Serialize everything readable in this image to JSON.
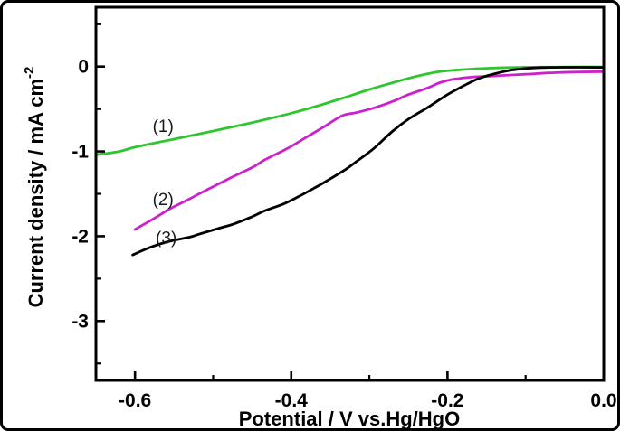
{
  "figure": {
    "background": "#ffffff",
    "border_color": "#000000",
    "axis_color": "#000000"
  },
  "chart_data": {
    "type": "line",
    "title": "",
    "xlabel": "Potential / V vs.Hg/HgO",
    "ylabel": "Current density / mA cm^-2",
    "ylabel_main": "Current density / mA cm",
    "ylabel_superscript": "-2",
    "xlim": [
      -0.65,
      0.0
    ],
    "ylim": [
      -3.7,
      0.7
    ],
    "grid": false,
    "legend_position": "inline-curve-labels",
    "x_major_ticks": [
      -0.6,
      -0.4,
      -0.2,
      0.0
    ],
    "x_major_tick_labels": [
      "-0.6",
      "-0.4",
      "-0.2",
      "0.0"
    ],
    "x_minor_ticks": [
      -0.5,
      -0.3,
      -0.1
    ],
    "y_major_ticks": [
      0,
      -1,
      -2,
      -3
    ],
    "y_major_tick_labels": [
      "0",
      "-1",
      "-2",
      "-3"
    ],
    "y_minor_ticks": [
      0.5,
      -0.5,
      -1.5,
      -2.5,
      -3.5
    ],
    "series": [
      {
        "name": "(1)",
        "color": "#2fc52f",
        "points": [
          [
            -0.65,
            -1.04
          ],
          [
            -0.62,
            -1.0
          ],
          [
            -0.6,
            -0.95
          ],
          [
            -0.55,
            -0.855
          ],
          [
            -0.5,
            -0.76
          ],
          [
            -0.45,
            -0.66
          ],
          [
            -0.4,
            -0.55
          ],
          [
            -0.365,
            -0.46
          ],
          [
            -0.33,
            -0.36
          ],
          [
            -0.3,
            -0.27
          ],
          [
            -0.27,
            -0.19
          ],
          [
            -0.24,
            -0.115
          ],
          [
            -0.21,
            -0.06
          ],
          [
            -0.18,
            -0.035
          ],
          [
            -0.15,
            -0.02
          ],
          [
            -0.12,
            -0.012
          ],
          [
            -0.08,
            -0.006
          ],
          [
            -0.04,
            -0.004
          ],
          [
            0.0,
            -0.004
          ]
        ]
      },
      {
        "name": "(2)",
        "color": "#cc22cc",
        "points": [
          [
            -0.6,
            -1.92
          ],
          [
            -0.57,
            -1.76
          ],
          [
            -0.556,
            -1.68
          ],
          [
            -0.53,
            -1.56
          ],
          [
            -0.516,
            -1.49
          ],
          [
            -0.49,
            -1.37
          ],
          [
            -0.475,
            -1.3
          ],
          [
            -0.45,
            -1.19
          ],
          [
            -0.434,
            -1.1
          ],
          [
            -0.41,
            -0.99
          ],
          [
            -0.4,
            -0.94
          ],
          [
            -0.38,
            -0.83
          ],
          [
            -0.36,
            -0.72
          ],
          [
            -0.335,
            -0.58
          ],
          [
            -0.318,
            -0.545
          ],
          [
            -0.295,
            -0.49
          ],
          [
            -0.27,
            -0.41
          ],
          [
            -0.25,
            -0.33
          ],
          [
            -0.225,
            -0.25
          ],
          [
            -0.21,
            -0.19
          ],
          [
            -0.193,
            -0.15
          ],
          [
            -0.17,
            -0.125
          ],
          [
            -0.15,
            -0.115
          ],
          [
            -0.132,
            -0.105
          ],
          [
            -0.1,
            -0.09
          ],
          [
            -0.07,
            -0.075
          ],
          [
            -0.04,
            -0.065
          ],
          [
            0.0,
            -0.06
          ]
        ]
      },
      {
        "name": "(3)",
        "color": "#000000",
        "points": [
          [
            -0.603,
            -2.22
          ],
          [
            -0.58,
            -2.13
          ],
          [
            -0.556,
            -2.06
          ],
          [
            -0.53,
            -2.01
          ],
          [
            -0.516,
            -1.97
          ],
          [
            -0.49,
            -1.9
          ],
          [
            -0.475,
            -1.86
          ],
          [
            -0.45,
            -1.77
          ],
          [
            -0.434,
            -1.7
          ],
          [
            -0.41,
            -1.62
          ],
          [
            -0.39,
            -1.53
          ],
          [
            -0.37,
            -1.43
          ],
          [
            -0.353,
            -1.34
          ],
          [
            -0.33,
            -1.21
          ],
          [
            -0.318,
            -1.13
          ],
          [
            -0.295,
            -0.97
          ],
          [
            -0.27,
            -0.76
          ],
          [
            -0.25,
            -0.62
          ],
          [
            -0.225,
            -0.48
          ],
          [
            -0.2,
            -0.33
          ],
          [
            -0.18,
            -0.23
          ],
          [
            -0.16,
            -0.14
          ],
          [
            -0.14,
            -0.085
          ],
          [
            -0.12,
            -0.045
          ],
          [
            -0.1,
            -0.022
          ],
          [
            -0.08,
            -0.012
          ],
          [
            -0.05,
            -0.008
          ],
          [
            0.0,
            -0.01
          ]
        ]
      }
    ],
    "annotations": [
      {
        "text": "(1)",
        "v": -0.564,
        "i": -0.695
      },
      {
        "text": "(2)",
        "v": -0.564,
        "i": -1.56
      },
      {
        "text": "(3)",
        "v": -0.56,
        "i": -2.01
      }
    ]
  }
}
